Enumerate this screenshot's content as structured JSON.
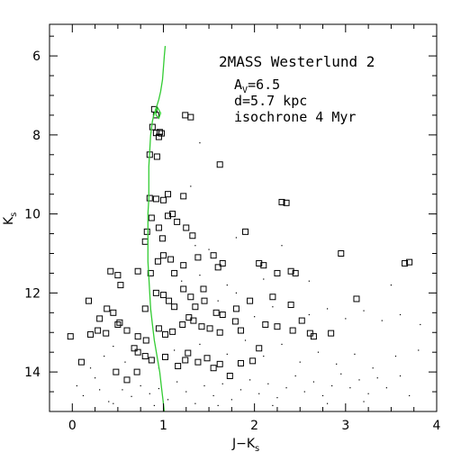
{
  "chart_data": {
    "type": "scatter",
    "annotation": {
      "title": "2MASS Westerlund 2",
      "av_main": "A",
      "av_sub": "V",
      "av_value": "=6.5",
      "distance": "d=5.7 kpc",
      "isochrone": "isochrone 4 Myr"
    },
    "xlabel": {
      "main": "J−K",
      "sub": "s"
    },
    "ylabel": {
      "main": "K",
      "sub": "s"
    },
    "xlim": [
      -0.25,
      4.0
    ],
    "ylim": [
      15.0,
      5.2
    ],
    "y_inverted": true,
    "xticks": [
      0,
      1,
      2,
      3,
      4
    ],
    "xtick_labels": [
      "0",
      "1",
      "2",
      "3",
      "4"
    ],
    "yticks": [
      6,
      8,
      10,
      12,
      14
    ],
    "ytick_labels": [
      "6",
      "8",
      "10",
      "12",
      "14"
    ],
    "x_minor_step": 0.25,
    "y_minor_step": 0.5,
    "colors": {
      "isochrone": "#33cc33",
      "markers": "#000000",
      "frame": "#000000"
    },
    "series": [
      {
        "marker": "open-square",
        "points": [
          [
            0.9,
            7.35
          ],
          [
            0.92,
            7.5
          ],
          [
            0.88,
            7.8
          ],
          [
            0.92,
            7.95
          ],
          [
            0.96,
            7.93
          ],
          [
            0.98,
            7.96
          ],
          [
            0.95,
            8.05
          ],
          [
            1.24,
            7.5
          ],
          [
            1.3,
            7.55
          ],
          [
            0.85,
            8.5
          ],
          [
            0.93,
            8.55
          ],
          [
            1.62,
            8.75
          ],
          [
            0.85,
            9.6
          ],
          [
            0.92,
            9.62
          ],
          [
            1.0,
            9.65
          ],
          [
            1.05,
            9.5
          ],
          [
            1.22,
            9.55
          ],
          [
            2.3,
            9.7
          ],
          [
            2.35,
            9.72
          ],
          [
            0.8,
            10.7
          ],
          [
            0.95,
            10.35
          ],
          [
            1.05,
            10.05
          ],
          [
            1.1,
            10.0
          ],
          [
            1.15,
            10.2
          ],
          [
            0.82,
            10.45
          ],
          [
            0.87,
            10.1
          ],
          [
            0.99,
            10.62
          ],
          [
            1.25,
            10.35
          ],
          [
            1.32,
            10.55
          ],
          [
            1.9,
            10.45
          ],
          [
            0.86,
            11.5
          ],
          [
            0.94,
            11.2
          ],
          [
            1.0,
            11.05
          ],
          [
            1.08,
            11.15
          ],
          [
            1.12,
            11.5
          ],
          [
            1.22,
            11.3
          ],
          [
            1.38,
            11.1
          ],
          [
            1.55,
            11.05
          ],
          [
            0.42,
            11.45
          ],
          [
            0.5,
            11.55
          ],
          [
            0.53,
            11.8
          ],
          [
            0.72,
            11.45
          ],
          [
            1.44,
            11.9
          ],
          [
            1.6,
            11.35
          ],
          [
            1.65,
            11.25
          ],
          [
            2.05,
            11.25
          ],
          [
            2.1,
            11.3
          ],
          [
            2.25,
            11.5
          ],
          [
            2.4,
            11.45
          ],
          [
            2.45,
            11.5
          ],
          [
            2.95,
            11.0
          ],
          [
            3.65,
            11.25
          ],
          [
            3.7,
            11.22
          ],
          [
            0.18,
            12.2
          ],
          [
            0.3,
            12.65
          ],
          [
            0.38,
            12.4
          ],
          [
            0.45,
            12.5
          ],
          [
            0.5,
            12.8
          ],
          [
            0.8,
            12.4
          ],
          [
            0.92,
            12.0
          ],
          [
            1.0,
            12.05
          ],
          [
            1.06,
            12.2
          ],
          [
            1.12,
            12.35
          ],
          [
            1.22,
            11.9
          ],
          [
            1.3,
            12.1
          ],
          [
            1.35,
            12.35
          ],
          [
            1.45,
            12.2
          ],
          [
            1.58,
            12.5
          ],
          [
            1.65,
            12.55
          ],
          [
            1.8,
            12.4
          ],
          [
            1.95,
            12.2
          ],
          [
            2.2,
            12.1
          ],
          [
            2.4,
            12.3
          ],
          [
            2.52,
            12.7
          ],
          [
            3.12,
            12.15
          ],
          [
            0.2,
            13.05
          ],
          [
            0.28,
            12.95
          ],
          [
            0.37,
            13.02
          ],
          [
            0.52,
            12.75
          ],
          [
            0.6,
            12.95
          ],
          [
            0.72,
            13.1
          ],
          [
            0.81,
            13.2
          ],
          [
            0.95,
            12.9
          ],
          [
            1.02,
            13.05
          ],
          [
            1.1,
            12.98
          ],
          [
            1.21,
            12.8
          ],
          [
            1.28,
            12.62
          ],
          [
            1.33,
            12.7
          ],
          [
            1.42,
            12.85
          ],
          [
            1.51,
            12.9
          ],
          [
            1.62,
            13.0
          ],
          [
            1.79,
            12.72
          ],
          [
            1.85,
            12.95
          ],
          [
            2.12,
            12.8
          ],
          [
            2.25,
            12.85
          ],
          [
            2.42,
            12.95
          ],
          [
            2.61,
            13.02
          ],
          [
            2.65,
            13.1
          ],
          [
            2.84,
            13.02
          ],
          [
            0.68,
            13.4
          ],
          [
            0.72,
            13.5
          ],
          [
            0.8,
            13.6
          ],
          [
            0.87,
            13.7
          ],
          [
            1.02,
            13.62
          ],
          [
            1.16,
            13.85
          ],
          [
            1.24,
            13.7
          ],
          [
            1.27,
            13.52
          ],
          [
            1.38,
            13.75
          ],
          [
            1.48,
            13.65
          ],
          [
            1.55,
            13.9
          ],
          [
            1.62,
            13.8
          ],
          [
            1.73,
            14.1
          ],
          [
            1.85,
            13.78
          ],
          [
            1.98,
            13.72
          ],
          [
            2.05,
            13.4
          ],
          [
            0.1,
            13.75
          ],
          [
            -0.02,
            13.1
          ],
          [
            0.48,
            14.0
          ],
          [
            0.6,
            14.2
          ],
          [
            0.71,
            14.0
          ]
        ]
      },
      {
        "marker": "dot",
        "points": [
          [
            0.05,
            14.35
          ],
          [
            0.12,
            14.6
          ],
          [
            0.25,
            14.15
          ],
          [
            0.3,
            14.45
          ],
          [
            0.4,
            14.75
          ],
          [
            0.55,
            14.45
          ],
          [
            0.65,
            14.62
          ],
          [
            0.75,
            14.35
          ],
          [
            0.85,
            14.55
          ],
          [
            0.95,
            14.42
          ],
          [
            1.05,
            14.7
          ],
          [
            1.15,
            14.25
          ],
          [
            1.25,
            14.5
          ],
          [
            1.35,
            14.8
          ],
          [
            1.45,
            14.35
          ],
          [
            1.55,
            14.6
          ],
          [
            1.65,
            14.3
          ],
          [
            1.75,
            14.7
          ],
          [
            1.85,
            14.45
          ],
          [
            1.95,
            14.2
          ],
          [
            2.05,
            14.55
          ],
          [
            2.15,
            14.3
          ],
          [
            2.25,
            14.65
          ],
          [
            2.35,
            14.4
          ],
          [
            2.45,
            14.1
          ],
          [
            2.55,
            14.5
          ],
          [
            2.65,
            14.25
          ],
          [
            2.75,
            14.6
          ],
          [
            2.85,
            14.35
          ],
          [
            2.95,
            14.05
          ],
          [
            3.05,
            14.4
          ],
          [
            3.15,
            14.2
          ],
          [
            3.25,
            14.55
          ],
          [
            3.35,
            14.15
          ],
          [
            3.45,
            14.4
          ],
          [
            3.6,
            14.1
          ],
          [
            0.2,
            13.9
          ],
          [
            0.35,
            13.6
          ],
          [
            0.45,
            13.35
          ],
          [
            0.58,
            13.75
          ],
          [
            0.95,
            13.9
          ],
          [
            1.12,
            13.45
          ],
          [
            1.4,
            13.3
          ],
          [
            1.7,
            13.55
          ],
          [
            1.9,
            13.2
          ],
          [
            2.1,
            13.6
          ],
          [
            2.3,
            13.3
          ],
          [
            2.5,
            13.75
          ],
          [
            2.7,
            13.5
          ],
          [
            2.9,
            13.8
          ],
          [
            3.1,
            13.55
          ],
          [
            3.3,
            13.9
          ],
          [
            3.55,
            13.6
          ],
          [
            3.8,
            13.45
          ],
          [
            1.6,
            12.2
          ],
          [
            1.8,
            12.0
          ],
          [
            2.0,
            12.6
          ],
          [
            2.2,
            12.35
          ],
          [
            2.6,
            12.55
          ],
          [
            2.8,
            12.4
          ],
          [
            3.0,
            12.65
          ],
          [
            3.2,
            12.45
          ],
          [
            3.4,
            12.7
          ],
          [
            3.6,
            12.55
          ],
          [
            3.82,
            12.8
          ],
          [
            1.2,
            11.7
          ],
          [
            1.4,
            11.55
          ],
          [
            1.7,
            11.8
          ],
          [
            2.1,
            11.65
          ],
          [
            2.6,
            11.7
          ],
          [
            3.5,
            11.8
          ],
          [
            1.3,
            9.3
          ],
          [
            1.35,
            10.8
          ],
          [
            1.5,
            10.9
          ],
          [
            1.8,
            10.6
          ],
          [
            2.3,
            10.8
          ],
          [
            1.4,
            8.2
          ],
          [
            0.45,
            14.8
          ],
          [
            0.9,
            14.85
          ],
          [
            1.6,
            14.85
          ],
          [
            2.2,
            14.85
          ],
          [
            2.8,
            14.8
          ],
          [
            3.2,
            14.75
          ],
          [
            3.7,
            14.6
          ]
        ]
      }
    ],
    "isochrone": [
      [
        1.02,
        5.75
      ],
      [
        1.01,
        6.0
      ],
      [
        1.0,
        6.3
      ],
      [
        0.99,
        6.6
      ],
      [
        0.97,
        6.9
      ],
      [
        0.95,
        7.1
      ],
      [
        0.93,
        7.25
      ],
      [
        0.91,
        7.38
      ],
      [
        0.92,
        7.5
      ],
      [
        0.95,
        7.58
      ],
      [
        0.97,
        7.45
      ],
      [
        0.94,
        7.32
      ],
      [
        0.9,
        7.45
      ],
      [
        0.88,
        7.65
      ],
      [
        0.86,
        8.0
      ],
      [
        0.85,
        8.4
      ],
      [
        0.84,
        8.8
      ],
      [
        0.84,
        9.2
      ],
      [
        0.84,
        9.6
      ],
      [
        0.83,
        10.0
      ],
      [
        0.83,
        10.4
      ],
      [
        0.83,
        10.8
      ],
      [
        0.83,
        11.2
      ],
      [
        0.84,
        11.6
      ],
      [
        0.85,
        12.0
      ],
      [
        0.86,
        12.4
      ],
      [
        0.88,
        12.8
      ],
      [
        0.9,
        13.2
      ],
      [
        0.93,
        13.6
      ],
      [
        0.96,
        14.0
      ],
      [
        0.98,
        14.4
      ],
      [
        1.0,
        14.8
      ],
      [
        1.01,
        15.0
      ]
    ]
  }
}
